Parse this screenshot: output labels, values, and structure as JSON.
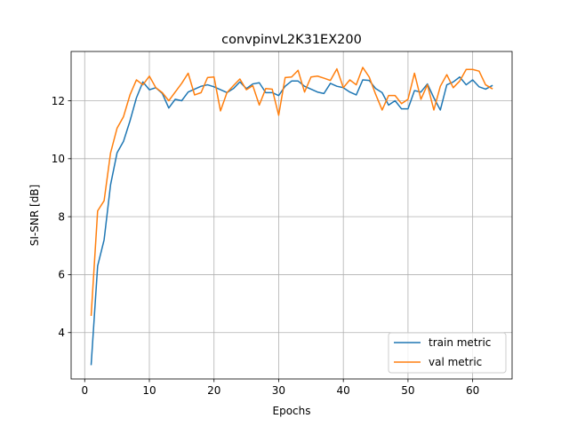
{
  "chart_data": {
    "type": "line",
    "title": "convpinvL2K31EX200",
    "xlabel": "Epochs",
    "ylabel": "SI-SNR [dB]",
    "xlim": [
      -2.1,
      66.1
    ],
    "ylim": [
      2.4,
      13.7
    ],
    "xticks": [
      0,
      10,
      20,
      30,
      40,
      50,
      60
    ],
    "yticks": [
      4,
      6,
      8,
      10,
      12
    ],
    "grid": true,
    "legend_position": "lower-right",
    "series": [
      {
        "name": "train metric",
        "color": "#1f77b4",
        "x": [
          1,
          2,
          3,
          4,
          5,
          6,
          7,
          8,
          9,
          10,
          11,
          12,
          13,
          14,
          15,
          16,
          17,
          18,
          19,
          20,
          21,
          22,
          23,
          24,
          25,
          26,
          27,
          28,
          29,
          30,
          31,
          32,
          33,
          34,
          35,
          36,
          37,
          38,
          39,
          40,
          41,
          42,
          43,
          44,
          45,
          46,
          47,
          48,
          49,
          50,
          51,
          52,
          53,
          54,
          55,
          56,
          57,
          58,
          59,
          60,
          61,
          62,
          63
        ],
        "values": [
          2.9,
          6.3,
          7.2,
          9.1,
          10.2,
          10.6,
          11.3,
          12.1,
          12.65,
          12.38,
          12.45,
          12.25,
          11.75,
          12.05,
          12.0,
          12.3,
          12.4,
          12.5,
          12.55,
          12.48,
          12.38,
          12.28,
          12.42,
          12.65,
          12.42,
          12.58,
          12.62,
          12.28,
          12.28,
          12.18,
          12.5,
          12.68,
          12.68,
          12.5,
          12.4,
          12.3,
          12.25,
          12.6,
          12.5,
          12.45,
          12.3,
          12.2,
          12.72,
          12.7,
          12.42,
          12.28,
          11.85,
          12.0,
          11.72,
          11.72,
          12.35,
          12.3,
          12.58,
          12.1,
          11.68,
          12.55,
          12.65,
          12.82,
          12.55,
          12.72,
          12.48,
          12.4,
          12.52
        ]
      },
      {
        "name": "val metric",
        "color": "#ff7f0e",
        "x": [
          1,
          2,
          3,
          4,
          5,
          6,
          7,
          8,
          9,
          10,
          11,
          12,
          13,
          14,
          15,
          16,
          17,
          18,
          19,
          20,
          21,
          22,
          23,
          24,
          25,
          26,
          27,
          28,
          29,
          30,
          31,
          32,
          33,
          34,
          35,
          36,
          37,
          38,
          39,
          40,
          41,
          42,
          43,
          44,
          45,
          46,
          47,
          48,
          49,
          50,
          51,
          52,
          53,
          54,
          55,
          56,
          57,
          58,
          59,
          60,
          61,
          62,
          63
        ],
        "values": [
          4.6,
          8.2,
          8.55,
          10.2,
          11.05,
          11.45,
          12.2,
          12.72,
          12.55,
          12.85,
          12.45,
          12.28,
          12.0,
          12.3,
          12.6,
          12.95,
          12.2,
          12.28,
          12.8,
          12.82,
          11.65,
          12.28,
          12.52,
          12.75,
          12.38,
          12.52,
          11.85,
          12.42,
          12.4,
          11.5,
          12.8,
          12.82,
          13.05,
          12.3,
          12.82,
          12.85,
          12.78,
          12.7,
          13.1,
          12.45,
          12.72,
          12.55,
          13.15,
          12.82,
          12.22,
          11.68,
          12.18,
          12.18,
          11.9,
          12.05,
          12.95,
          12.05,
          12.55,
          11.68,
          12.5,
          12.9,
          12.45,
          12.68,
          13.08,
          13.08,
          13.02,
          12.55,
          12.42
        ]
      }
    ]
  }
}
